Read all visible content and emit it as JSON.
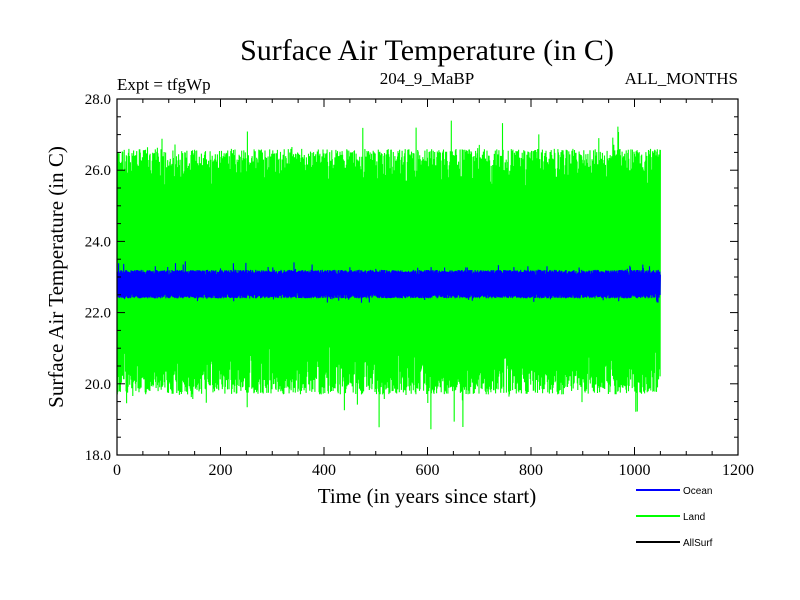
{
  "chart_data": {
    "type": "line",
    "title": "Surface Air Temperature (in C)",
    "subtitle_left": "Expt = tfgWp",
    "subtitle_center": "204_9_MaBP",
    "subtitle_right": "ALL_MONTHS",
    "xlabel": "Time (in years since start)",
    "ylabel": "Surface Air Temperature (in C)",
    "xlim": [
      0,
      1200
    ],
    "ylim": [
      18.0,
      28.0
    ],
    "x_ticks": [
      0,
      200,
      400,
      600,
      800,
      1000,
      1200
    ],
    "x_tick_labels": [
      "0",
      "200",
      "400",
      "600",
      "800",
      "1000",
      "1200"
    ],
    "y_ticks": [
      18,
      20,
      22,
      24,
      26,
      28
    ],
    "y_tick_labels": [
      "18.0",
      "20.0",
      "22.0",
      "24.0",
      "26.0",
      "28.0"
    ],
    "x_range_data": [
      0,
      1050
    ],
    "series": [
      {
        "name": "Land",
        "color": "#00ff00",
        "mean": 23.0,
        "typical_range": [
          19.7,
          26.6
        ],
        "extremes": [
          18.5,
          27.5
        ]
      },
      {
        "name": "Ocean",
        "color": "#0000ff",
        "mean": 22.8,
        "typical_range": [
          22.4,
          23.2
        ],
        "extremes": [
          22.25,
          23.45
        ]
      },
      {
        "name": "AllSurf",
        "color": "#000000",
        "mean": null,
        "typical_range": null,
        "extremes": null
      }
    ],
    "legend": {
      "placement": "bottom-right",
      "entries": [
        "Ocean",
        "Land",
        "AllSurf"
      ]
    }
  }
}
